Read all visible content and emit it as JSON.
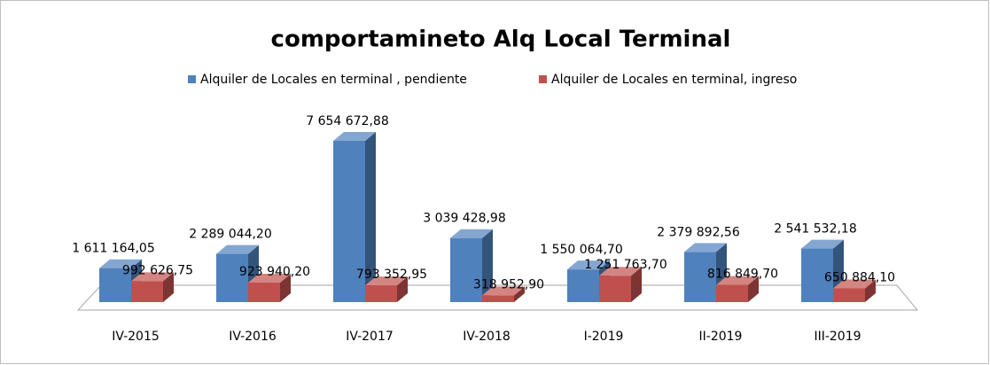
{
  "chart_data": {
    "type": "bar3d",
    "title": "comportamineto Alq  Local Terminal",
    "categories": [
      "IV-2015",
      "IV-2016",
      "IV-2017",
      "IV-2018",
      "I-2019",
      "II-2019",
      "III-2019"
    ],
    "series": [
      {
        "name": "Alquiler de Locales en terminal , pendiente",
        "color": "#4f81bd",
        "values": [
          1611164.05,
          2289044.2,
          7654672.88,
          3039428.98,
          1550064.7,
          2379892.56,
          2541532.18
        ],
        "value_labels": [
          "1 611 164,05",
          "2 289 044,20",
          "7 654 672,88",
          "3 039 428,98",
          "1 550 064,70",
          "2 379 892,56",
          "2 541 532,18"
        ]
      },
      {
        "name": "Alquiler de Locales en terminal, ingreso",
        "color": "#c0504d",
        "values": [
          992626.75,
          923940.2,
          793352.95,
          318952.9,
          1251763.7,
          816849.7,
          650884.1
        ],
        "value_labels": [
          "992 626,75",
          "923 940,20",
          "793 352,95",
          "318 952,90",
          "1 251 763,70",
          "816 849,70",
          "650 884,10"
        ]
      }
    ]
  }
}
